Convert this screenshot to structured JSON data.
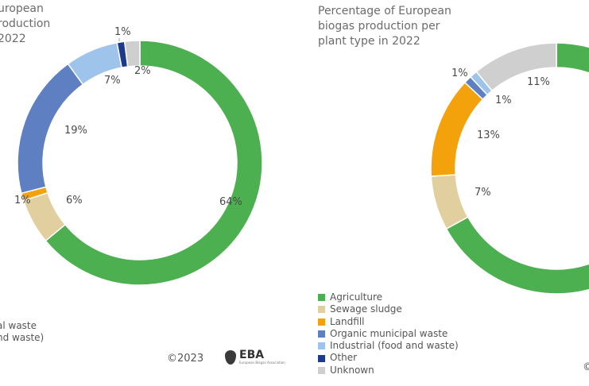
{
  "left_panel": {
    "title_fragment": "uropean\nroduction\n2022",
    "legend_fragments": [
      "al waste",
      "nd waste)"
    ],
    "copyright": "©2023",
    "logo_abbr": "EBA",
    "logo_full": "European Biogas Association"
  },
  "right_panel": {
    "title": "Percentage of European\nbiogas production per\nplant type in 2022",
    "copyright_fragment": "©"
  },
  "colors": {
    "Agriculture": "#4caf50",
    "Sewage sludge": "#e2cf9f",
    "Landfill": "#f4a20c",
    "Organic municipal waste": "#5f7fc3",
    "Industrial (food and waste)": "#9fc4ec",
    "Other": "#1e3a8a",
    "Unknown": "#cfcfcf"
  },
  "chart_data": [
    {
      "type": "pie",
      "donut": true,
      "categories": [
        "Agriculture",
        "Sewage sludge",
        "Landfill",
        "Organic municipal waste",
        "Industrial (food and waste)",
        "Other",
        "Unknown"
      ],
      "values": [
        64,
        6,
        1,
        19,
        7,
        1,
        2
      ],
      "labels": [
        "64%",
        "6%",
        "1%",
        "19%",
        "7%",
        "1%",
        "2%"
      ]
    },
    {
      "type": "pie",
      "donut": true,
      "categories": [
        "Agriculture",
        "Sewage sludge",
        "Landfill",
        "Organic municipal waste",
        "Industrial (food and waste)",
        "Unknown"
      ],
      "values": [
        67,
        7,
        13,
        1,
        1,
        11
      ],
      "labels": [
        "",
        "7%",
        "13%",
        "1%",
        "1%",
        "11%"
      ],
      "legend": [
        "Agriculture",
        "Sewage sludge",
        "Landfill",
        "Organic municipal waste",
        "Industrial (food and waste)",
        "Other",
        "Unknown"
      ]
    }
  ]
}
